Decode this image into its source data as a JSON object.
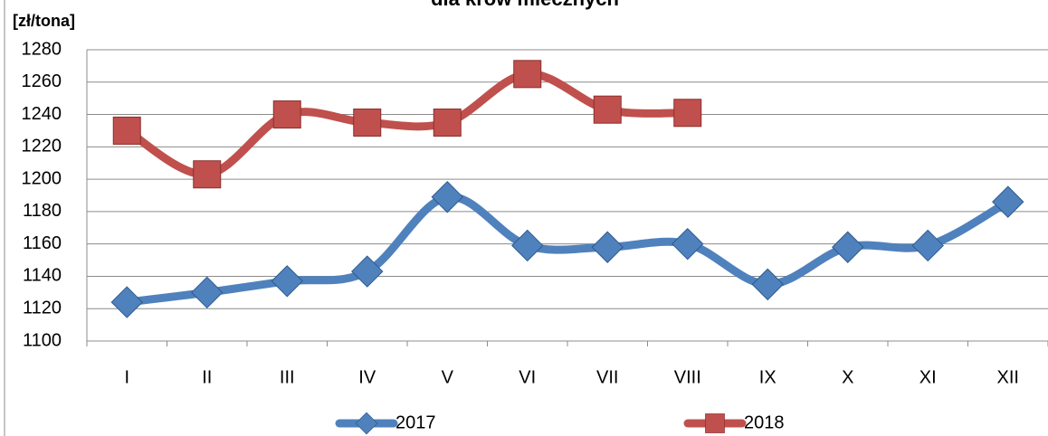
{
  "chart_data": {
    "type": "line",
    "title": "dla krów mlecznych",
    "y_label": "[zł/tona]",
    "categories": [
      "I",
      "II",
      "III",
      "IV",
      "V",
      "VI",
      "VII",
      "VIII",
      "IX",
      "X",
      "XI",
      "XII"
    ],
    "series": [
      {
        "name": "2017",
        "color": "#4f81bd",
        "marker": "diamond",
        "values": [
          1124,
          1130,
          1137,
          1143,
          1189,
          1159,
          1158,
          1160,
          1135,
          1158,
          1159,
          1186
        ]
      },
      {
        "name": "2018",
        "color": "#c0504d",
        "marker": "square",
        "values": [
          1230,
          1203,
          1240,
          1235,
          1235,
          1265,
          1243,
          1241,
          null,
          null,
          null,
          null
        ]
      }
    ],
    "ylim": [
      1100,
      1280
    ],
    "yticks": [
      1100,
      1120,
      1140,
      1160,
      1180,
      1200,
      1220,
      1240,
      1260,
      1280
    ],
    "grid": true,
    "smooth": true,
    "legend": "bottom"
  }
}
